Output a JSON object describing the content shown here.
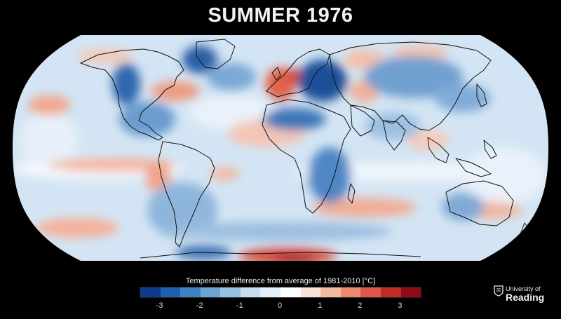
{
  "title": "SUMMER 1976",
  "legend": {
    "title": "Temperature difference from average of 1981-2010 [°C]",
    "ticks": [
      "-3",
      "-2",
      "-1",
      "0",
      "1",
      "2",
      "3"
    ],
    "colors": [
      "#0b3c8c",
      "#1f5fae",
      "#3f82c2",
      "#6aa4d4",
      "#97c2e3",
      "#c3dcef",
      "#e4eef8",
      "#ffffff",
      "#fbe1d6",
      "#f4b9a2",
      "#eb8a6f",
      "#dc5845",
      "#c22a27",
      "#8e0a16"
    ]
  },
  "logo": {
    "line1": "University of",
    "line2": "Reading"
  },
  "colors": {
    "background": "#000000",
    "ocean_base": "#d5e6f4",
    "coast": "#111111"
  }
}
